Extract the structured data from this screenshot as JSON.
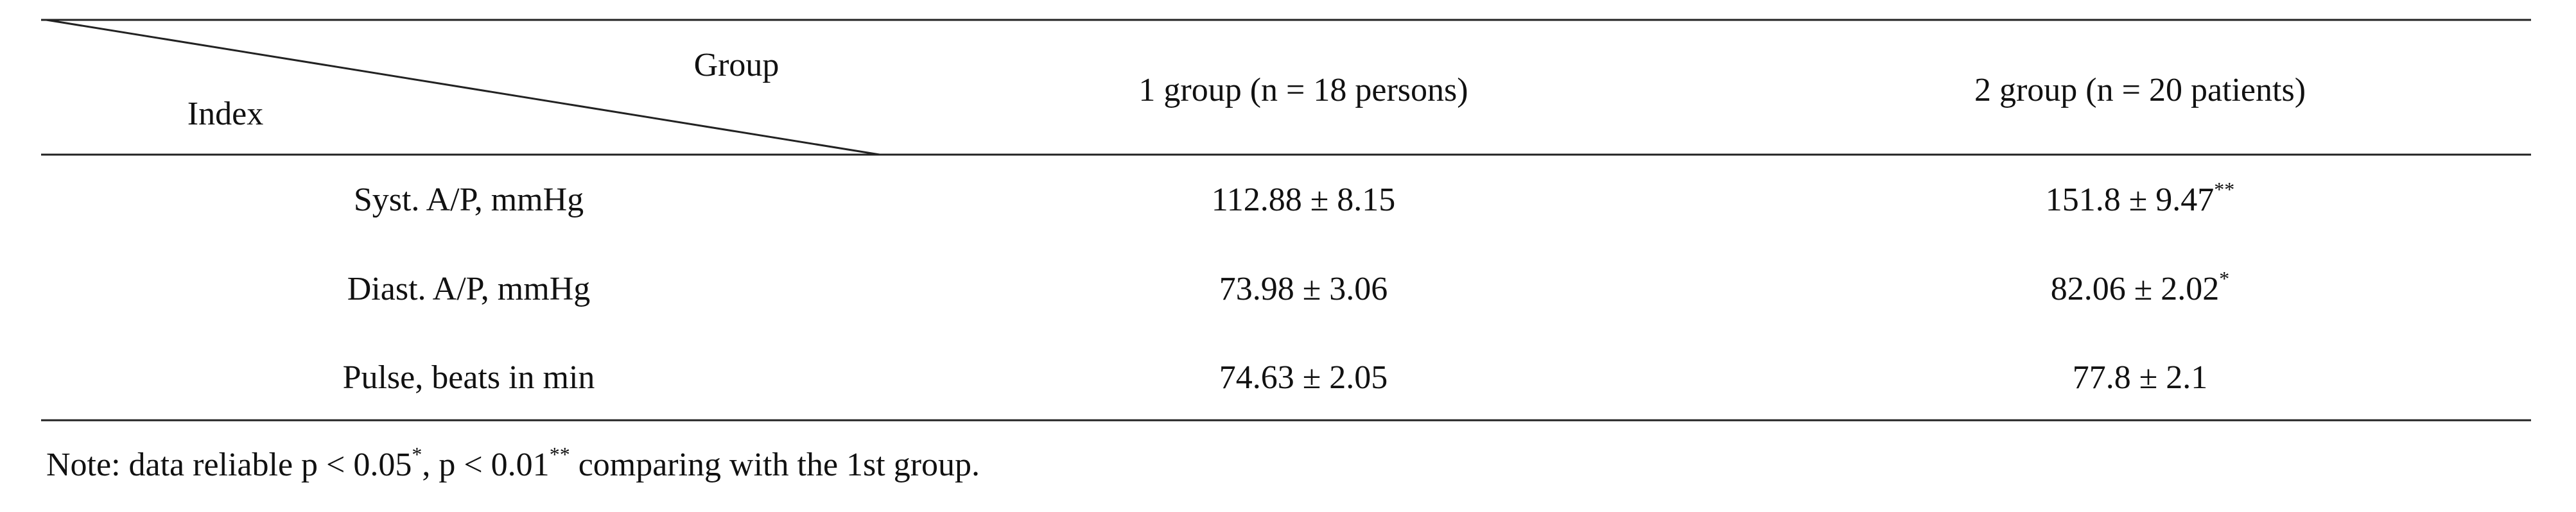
{
  "table": {
    "header": {
      "group": "Group",
      "index": "Index",
      "columns": [
        "1 group (n = 18 persons)",
        "2 group (n = 20 patients)"
      ]
    },
    "rows": [
      {
        "label": "Syst. A/P, mmHg",
        "cells": [
          {
            "text": "112.88 ± 8.15"
          },
          {
            "text": "151.8 ± 9.47",
            "sup": "**"
          }
        ]
      },
      {
        "label": "Diast. A/P, mmHg",
        "cells": [
          {
            "text": "73.98 ± 3.06"
          },
          {
            "text": "82.06 ± 2.02",
            "sup": "*"
          }
        ]
      },
      {
        "label": "Pulse, beats in min",
        "cells": [
          {
            "text": "74.63 ± 2.05"
          },
          {
            "text": "77.8 ± 2.1"
          }
        ]
      }
    ]
  },
  "note": {
    "parts": [
      {
        "text": "Note: data reliable p < 0.05"
      },
      {
        "sup": "*"
      },
      {
        "text": ", p < 0.01"
      },
      {
        "sup": "**"
      },
      {
        "text": " comparing with the 1st group."
      }
    ]
  }
}
